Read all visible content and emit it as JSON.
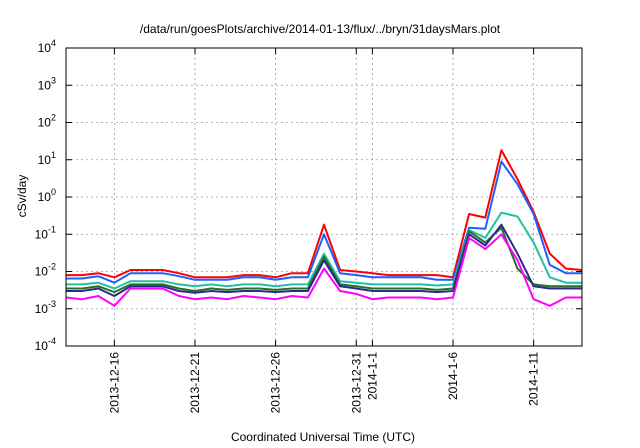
{
  "chart_data": {
    "type": "line",
    "title": "/data/run/goesPlots/archive/2014-01-13/flux/../bryn/31daysMars.plot",
    "xlabel": "Coordinated Universal Time (UTC)",
    "ylabel": "cSv/day",
    "x_scale": "date",
    "y_scale": "log",
    "xlim": [
      "2013-12-13",
      "2014-01-14"
    ],
    "ylim": [
      0.0001,
      10000
    ],
    "grid": true,
    "legend": "none",
    "x_ticks": [
      {
        "date": "2013-12-16",
        "label": "2013-12-16"
      },
      {
        "date": "2013-12-21",
        "label": "2013-12-21"
      },
      {
        "date": "2013-12-26",
        "label": "2013-12-26"
      },
      {
        "date": "2013-12-31",
        "label": "2013-12-31"
      },
      {
        "date": "2014-01-01",
        "label": "2014-1-1"
      },
      {
        "date": "2014-01-06",
        "label": "2014-1-6"
      },
      {
        "date": "2014-01-11",
        "label": "2014-1-11"
      }
    ],
    "y_ticks": [
      {
        "value": 0.0001,
        "base": "10",
        "exp": "-4"
      },
      {
        "value": 0.001,
        "base": "10",
        "exp": "-3"
      },
      {
        "value": 0.01,
        "base": "10",
        "exp": "-2"
      },
      {
        "value": 0.1,
        "base": "10",
        "exp": "-1"
      },
      {
        "value": 1,
        "base": "10",
        "exp": "0"
      },
      {
        "value": 10,
        "base": "10",
        "exp": "1"
      },
      {
        "value": 100,
        "base": "10",
        "exp": "2"
      },
      {
        "value": 1000,
        "base": "10",
        "exp": "3"
      },
      {
        "value": 10000,
        "base": "10",
        "exp": "4"
      }
    ],
    "x": [
      "2013-12-13",
      "2013-12-14",
      "2013-12-15",
      "2013-12-16",
      "2013-12-17",
      "2013-12-18",
      "2013-12-19",
      "2013-12-20",
      "2013-12-21",
      "2013-12-22",
      "2013-12-23",
      "2013-12-24",
      "2013-12-25",
      "2013-12-26",
      "2013-12-27",
      "2013-12-28",
      "2013-12-29",
      "2013-12-30",
      "2013-12-31",
      "2014-01-01",
      "2014-01-02",
      "2014-01-03",
      "2014-01-04",
      "2014-01-05",
      "2014-01-06",
      "2014-01-07",
      "2014-01-08",
      "2014-01-09",
      "2014-01-10",
      "2014-01-11",
      "2014-01-12",
      "2014-01-13",
      "2014-01-14"
    ],
    "series": [
      {
        "color": "#ff0000",
        "values": [
          0.008,
          0.008,
          0.009,
          0.007,
          0.011,
          0.011,
          0.011,
          0.009,
          0.007,
          0.007,
          0.007,
          0.008,
          0.008,
          0.007,
          0.009,
          0.009,
          0.18,
          0.011,
          0.01,
          0.009,
          0.008,
          0.008,
          0.008,
          0.008,
          0.007,
          0.35,
          0.28,
          18,
          3,
          0.4,
          0.03,
          0.012,
          0.011
        ]
      },
      {
        "color": "#1f5fff",
        "values": [
          0.0065,
          0.0065,
          0.0075,
          0.005,
          0.009,
          0.009,
          0.009,
          0.0075,
          0.006,
          0.006,
          0.006,
          0.007,
          0.007,
          0.006,
          0.007,
          0.007,
          0.1,
          0.009,
          0.008,
          0.007,
          0.007,
          0.007,
          0.007,
          0.006,
          0.006,
          0.15,
          0.14,
          9,
          2.2,
          0.35,
          0.015,
          0.009,
          0.009
        ]
      },
      {
        "color": "#20c0a0",
        "values": [
          0.0045,
          0.0045,
          0.005,
          0.0035,
          0.0055,
          0.0055,
          0.0055,
          0.0045,
          0.004,
          0.0045,
          0.004,
          0.0045,
          0.0045,
          0.004,
          0.0045,
          0.0045,
          0.03,
          0.0055,
          0.005,
          0.0045,
          0.0045,
          0.0045,
          0.0045,
          0.0042,
          0.0045,
          0.13,
          0.08,
          0.38,
          0.3,
          0.06,
          0.007,
          0.005,
          0.005
        ]
      },
      {
        "color": "#2a6e2a",
        "values": [
          0.0035,
          0.0035,
          0.004,
          0.0028,
          0.0045,
          0.0045,
          0.0045,
          0.0035,
          0.003,
          0.0035,
          0.0032,
          0.0035,
          0.0035,
          0.0032,
          0.0035,
          0.0035,
          0.025,
          0.0045,
          0.004,
          0.0035,
          0.0035,
          0.0035,
          0.0035,
          0.0032,
          0.0035,
          0.12,
          0.06,
          0.15,
          0.012,
          0.0045,
          0.004,
          0.004,
          0.004
        ]
      },
      {
        "color": "#2b2b8c",
        "values": [
          0.003,
          0.003,
          0.0035,
          0.0022,
          0.004,
          0.004,
          0.004,
          0.003,
          0.0027,
          0.003,
          0.0028,
          0.003,
          0.003,
          0.0028,
          0.003,
          0.003,
          0.02,
          0.004,
          0.0035,
          0.003,
          0.003,
          0.003,
          0.003,
          0.0028,
          0.003,
          0.1,
          0.05,
          0.18,
          0.03,
          0.004,
          0.0035,
          0.0035,
          0.0035
        ]
      },
      {
        "color": "#ff00ff",
        "values": [
          0.002,
          0.0018,
          0.0022,
          0.0012,
          0.0035,
          0.0035,
          0.0035,
          0.0022,
          0.0018,
          0.002,
          0.0018,
          0.0022,
          0.002,
          0.0018,
          0.0022,
          0.002,
          0.012,
          0.003,
          0.0025,
          0.0018,
          0.002,
          0.002,
          0.002,
          0.0018,
          0.002,
          0.08,
          0.04,
          0.1,
          0.02,
          0.0018,
          0.0012,
          0.002,
          0.002
        ]
      }
    ]
  }
}
